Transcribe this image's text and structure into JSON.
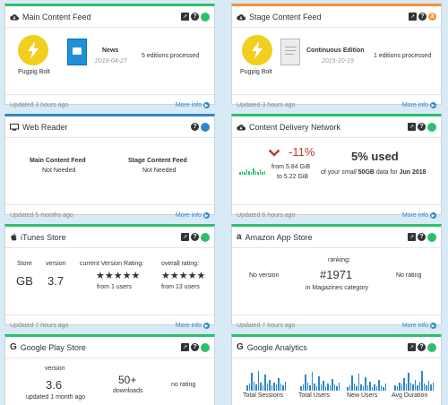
{
  "cards": {
    "main_feed": {
      "title": "Main Content Feed",
      "app_name": "Pugpig Bolt",
      "edition_title": "News",
      "edition_date": "2018-04-27",
      "editions_processed": "5 editions processed",
      "updated": "Updated 3 hours ago",
      "more_info": "More info"
    },
    "stage_feed": {
      "title": "Stage Content Feed",
      "app_name": "Pugpig Bolt",
      "edition_title": "Continuous Edition",
      "edition_date": "2015-10-19",
      "editions_processed": "1 editions processed",
      "updated": "Updated 3 hours ago",
      "more_info": "More info"
    },
    "web_reader": {
      "title": "Web Reader",
      "col1_label": "Main Content Feed",
      "col1_value": "Not Needed",
      "col2_label": "Stage Content Feed",
      "col2_value": "Not Needed",
      "updated": "Updated 5 months ago",
      "more_info": "More info"
    },
    "cdn": {
      "title": "Content Delivery Network",
      "change": "-11%",
      "from_line": "from 5.84 GiB",
      "to_line": "to 5.22 GiB",
      "used": "5% used",
      "used_pre": "of your",
      "used_plan": "small",
      "used_size": "50GB",
      "used_mid": "data for",
      "used_month": "Jun 2018",
      "updated": "Updated 6 hours ago",
      "more_info": "More info",
      "spark_values": [
        2,
        3,
        2,
        4,
        3,
        2,
        5,
        3,
        2,
        4,
        2,
        3
      ]
    },
    "itunes": {
      "title": "iTunes Store",
      "store_label": "Store",
      "store_value": "GB",
      "version_label": "version",
      "version_value": "3.7",
      "current_rating_label": "current Version Rating:",
      "current_rating_stars": 5,
      "current_rating_users": "from 1 users",
      "overall_rating_label": "overall rating:",
      "overall_rating_stars": 5,
      "overall_rating_users": "from 13 users",
      "updated": "Updated 7 hours ago",
      "more_info": "More info"
    },
    "amazon": {
      "title": "Amazon App Store",
      "no_version": "No version",
      "ranking_label": "ranking:",
      "ranking_value": "#1971",
      "ranking_category": "in Magazines category",
      "no_rating": "No rating",
      "updated": "Updated 7 hours ago",
      "more_info": "More info"
    },
    "google_play": {
      "title": "Google Play Store",
      "version_label": "version",
      "version_value": "3.6",
      "updated_ago": "updated 1 month ago",
      "downloads_value": "50+",
      "downloads_label": "downloads",
      "no_rating": "no rating"
    },
    "google_analytics": {
      "title": "Google Analytics",
      "metrics": [
        "Total Sessions",
        "Total Users",
        "New Users",
        "Avg Duration"
      ]
    }
  },
  "colors": {
    "green": "#2dbf6c",
    "orange": "#f0953a",
    "blue": "#2f86c8",
    "bolt_yellow": "#f2cf1f",
    "down_red": "#c0392b"
  },
  "icons": [
    "cloud-icon",
    "monitor-icon",
    "apple-icon",
    "amazon-icon",
    "google-icon",
    "external-link-icon",
    "help-icon",
    "status-dot-icon",
    "chevron-down-icon",
    "arrow-circle-right-icon",
    "bolt-icon"
  ]
}
